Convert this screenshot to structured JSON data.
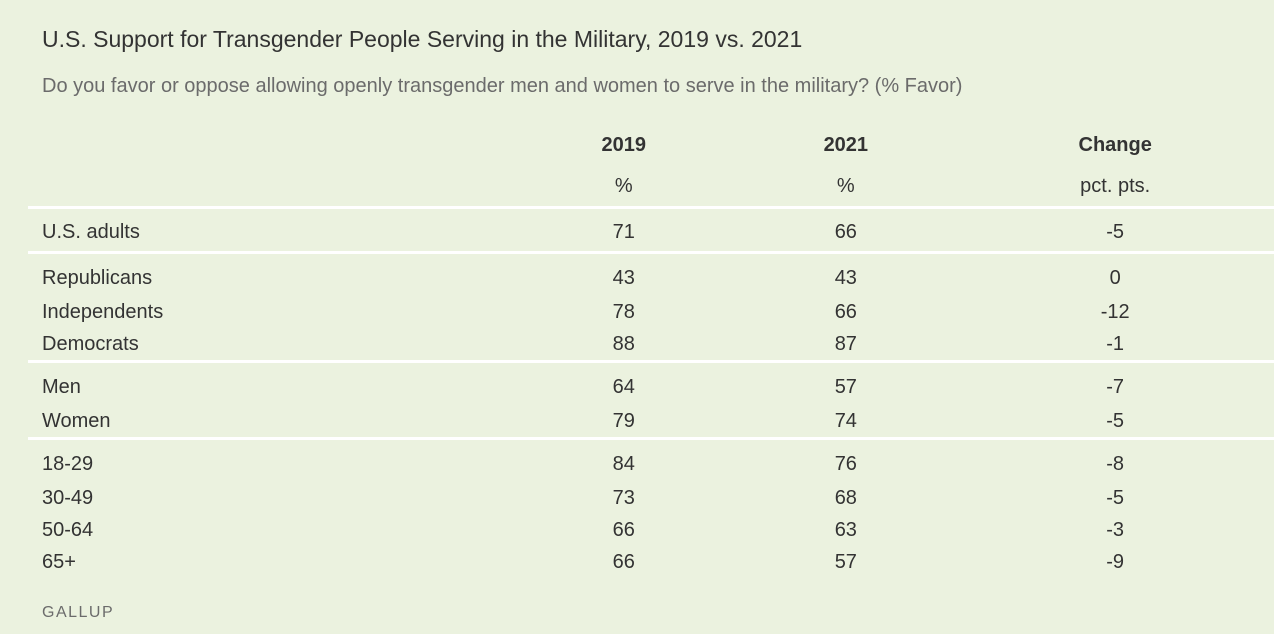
{
  "chart_data": {
    "type": "table",
    "title": "U.S. Support for Transgender People Serving in the Military, 2019 vs. 2021",
    "subtitle": "Do you favor or oppose allowing openly transgender men and women to serve in the military? (% Favor)",
    "columns": [
      {
        "header": "2019",
        "unit": "%"
      },
      {
        "header": "2021",
        "unit": "%"
      },
      {
        "header": "Change",
        "unit": "pct. pts."
      }
    ],
    "groups": [
      {
        "rows": [
          {
            "label": "U.S. adults",
            "v2019": "71",
            "v2021": "66",
            "change": "-5"
          }
        ]
      },
      {
        "rows": [
          {
            "label": "Republicans",
            "v2019": "43",
            "v2021": "43",
            "change": "0"
          },
          {
            "label": "Independents",
            "v2019": "78",
            "v2021": "66",
            "change": "-12"
          },
          {
            "label": "Democrats",
            "v2019": "88",
            "v2021": "87",
            "change": "-1"
          }
        ]
      },
      {
        "rows": [
          {
            "label": "Men",
            "v2019": "64",
            "v2021": "57",
            "change": "-7"
          },
          {
            "label": "Women",
            "v2019": "79",
            "v2021": "74",
            "change": "-5"
          }
        ]
      },
      {
        "rows": [
          {
            "label": "18-29",
            "v2019": "84",
            "v2021": "76",
            "change": "-8"
          },
          {
            "label": "30-49",
            "v2019": "73",
            "v2021": "68",
            "change": "-5"
          },
          {
            "label": "50-64",
            "v2019": "66",
            "v2021": "63",
            "change": "-3"
          },
          {
            "label": "65+",
            "v2019": "66",
            "v2021": "57",
            "change": "-9"
          }
        ]
      }
    ],
    "source": "GALLUP"
  },
  "colors": {
    "background": "#ebf2df",
    "text": "#333333",
    "muted_text": "#6b6b6b",
    "divider": "#ffffff"
  }
}
